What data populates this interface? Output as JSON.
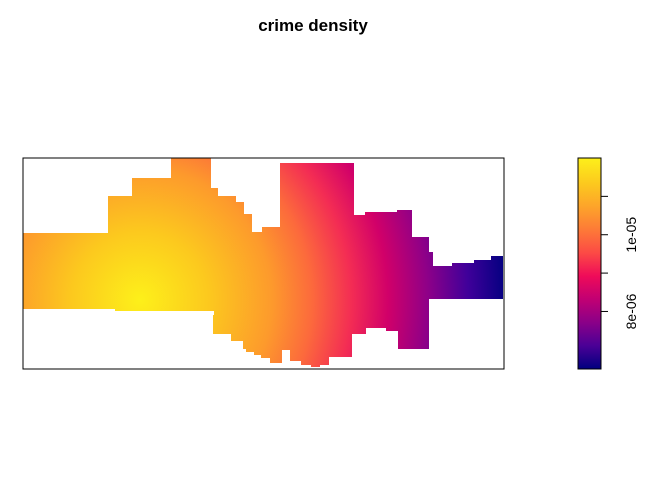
{
  "chart_data": {
    "type": "heatmap",
    "title": "crime density",
    "xlabel": "",
    "ylabel": "",
    "axes": "none",
    "legend": {
      "type": "colorbar",
      "placement": "right",
      "range": [
        6.5e-06,
        1.2e-05
      ],
      "ticks": [
        {
          "value": 8e-06,
          "label": "8e-06"
        },
        {
          "value": 9e-06,
          "label": ""
        },
        {
          "value": 1e-05,
          "label": "1e-05"
        },
        {
          "value": 1.1e-05,
          "label": ""
        }
      ],
      "colors": [
        "#00007f",
        "#4a0096",
        "#8a0088",
        "#c10073",
        "#ef0b59",
        "#fc4a45",
        "#fd7a37",
        "#fda42a",
        "#fcc91e",
        "#fdf01a"
      ]
    },
    "surface": {
      "peak_value": 1.2e-05,
      "min_value": 6.5e-06,
      "gradient": "decreasing from lower-left to right"
    }
  }
}
